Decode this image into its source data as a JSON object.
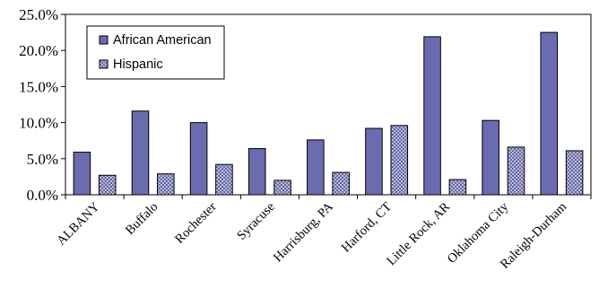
{
  "chart_data": {
    "type": "bar",
    "title": "",
    "xlabel": "",
    "ylabel": "",
    "ylim": [
      0,
      25
    ],
    "y_ticks": [
      "0.0%",
      "5.0%",
      "10.0%",
      "15.0%",
      "20.0%",
      "25.0%"
    ],
    "categories": [
      "ALBANY",
      "Buffalo",
      "Rochester",
      "Syracuse",
      "Harrisburg, PA",
      "Harford, CT",
      "Little Rock, AR",
      "Oklahoma City",
      "Raleigh-Durham"
    ],
    "series": [
      {
        "name": "African American",
        "color": "#6b6bb0",
        "values": [
          5.9,
          11.6,
          10.0,
          6.4,
          7.6,
          9.2,
          21.9,
          10.3,
          22.5
        ]
      },
      {
        "name": "Hispanic",
        "color": "#b8bde0",
        "pattern": "crosshatch",
        "values": [
          2.7,
          2.9,
          4.2,
          2.0,
          3.1,
          9.6,
          2.1,
          6.6,
          6.1
        ]
      }
    ],
    "legend_position": "top-left",
    "grid": false
  }
}
